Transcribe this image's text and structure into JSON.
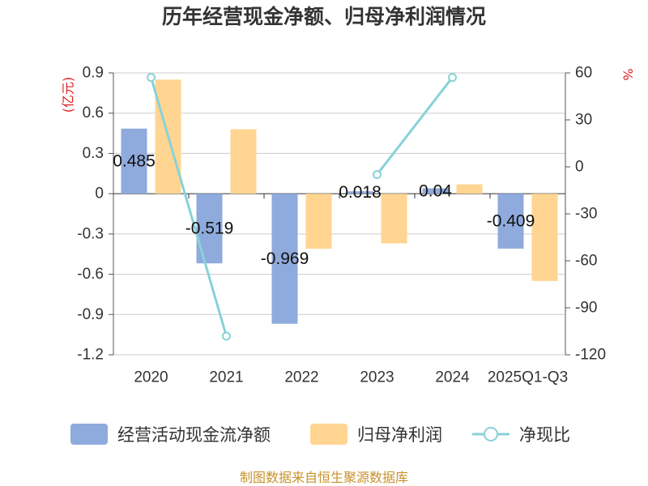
{
  "chart_data": {
    "type": "bar",
    "title": "历年经营现金净额、归母净利润情况",
    "categories": [
      "2020",
      "2021",
      "2022",
      "2023",
      "2024",
      "2025Q1-Q3"
    ],
    "series": [
      {
        "name": "经营活动现金流净额",
        "type": "bar",
        "axis": "left",
        "color": "#8FAADC",
        "data_labels": true,
        "values": [
          0.485,
          -0.519,
          -0.969,
          0.018,
          0.04,
          -0.409
        ]
      },
      {
        "name": "归母净利润",
        "type": "bar",
        "axis": "left",
        "color": "#FFD591",
        "data_labels": false,
        "values": [
          0.85,
          0.48,
          -0.41,
          -0.37,
          0.07,
          -0.65
        ]
      },
      {
        "name": "净现比",
        "type": "line",
        "axis": "right",
        "color": "#88D2D8",
        "values": [
          57.1,
          -108.1,
          null,
          -4.9,
          57.1,
          null
        ]
      }
    ],
    "y_axis": {
      "label": "(亿元)",
      "label_color": "#E02020",
      "range": [
        -1.2,
        0.9
      ],
      "ticks": [
        0.9,
        0.6,
        0.3,
        0,
        -0.3,
        -0.6,
        -0.9,
        -1.2
      ]
    },
    "y2_axis": {
      "label": "%",
      "label_color": "#E02020",
      "range": [
        -120,
        60
      ],
      "ticks": [
        60,
        30,
        0,
        -30,
        -60,
        -90,
        -120
      ]
    },
    "xlabel": "",
    "grid": true,
    "legend_position": "bottom"
  },
  "source": "制图数据来自恒生聚源数据库"
}
